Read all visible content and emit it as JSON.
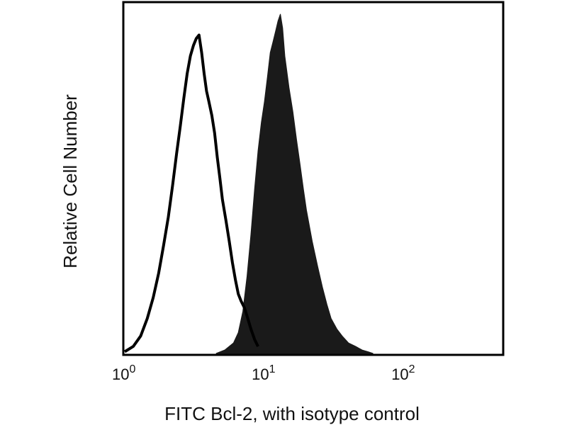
{
  "chart_data": {
    "type": "area",
    "xlabel": "FITC Bcl-2, with isotype control",
    "ylabel": "Relative Cell Number",
    "x_scale": "log",
    "xlim": [
      1,
      500
    ],
    "ylim": [
      0,
      100
    ],
    "grid": false,
    "legend": "none",
    "x_ticks": [
      {
        "value": 1,
        "base": "10",
        "exp": "0"
      },
      {
        "value": 10,
        "base": "10",
        "exp": "1"
      },
      {
        "value": 100,
        "base": "10",
        "exp": "2"
      }
    ],
    "series": [
      {
        "style": "outline",
        "color": "#000000",
        "x": [
          1.0,
          1.15,
          1.3,
          1.45,
          1.6,
          1.75,
          1.9,
          2.05,
          2.2,
          2.35,
          2.5,
          2.65,
          2.8,
          2.95,
          3.1,
          3.25,
          3.4,
          3.55,
          3.7,
          3.85,
          4.0,
          4.2,
          4.4,
          4.6,
          4.8,
          5.0,
          5.3,
          5.6,
          5.9,
          6.2,
          6.5,
          6.8,
          7.2,
          7.6,
          8.0,
          8.5,
          9.0
        ],
        "values": [
          0.5,
          2,
          5,
          10,
          16,
          23,
          31,
          39,
          48,
          57,
          65,
          73,
          80,
          85,
          88,
          90,
          91,
          86,
          80,
          75,
          72,
          68,
          63,
          56,
          50,
          44,
          38,
          32,
          26,
          21,
          17,
          15,
          13,
          10,
          7,
          4,
          2
        ]
      },
      {
        "style": "filled",
        "color": "#1a1a1a",
        "x": [
          4.5,
          5.2,
          6.0,
          6.5,
          7.0,
          7.5,
          8.0,
          8.5,
          9.0,
          9.5,
          10.0,
          10.5,
          11.0,
          11.5,
          12.0,
          12.5,
          13.0,
          13.5,
          14.0,
          15.0,
          16.0,
          17.0,
          18.0,
          19.0,
          20.0,
          22.0,
          24.0,
          26.0,
          28.0,
          30.0,
          33.0,
          36.0,
          40.0,
          45.0,
          50.0,
          55.0,
          60.0
        ],
        "values": [
          0,
          1,
          3,
          6,
          12,
          22,
          34,
          47,
          58,
          66,
          72,
          79,
          86,
          89,
          92,
          95,
          97,
          93,
          85,
          76,
          69,
          61,
          54,
          47,
          41,
          32,
          25,
          19,
          14,
          10,
          7,
          5,
          3,
          2,
          1,
          0.5,
          0
        ]
      }
    ]
  }
}
